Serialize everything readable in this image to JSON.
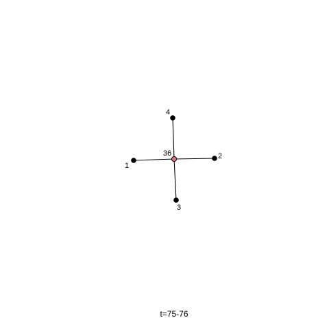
{
  "graph": {
    "caption": "t=75-76",
    "center": {
      "id": "36",
      "color": "#e0707a"
    },
    "leaves": [
      {
        "id": "1",
        "color": "#000000"
      },
      {
        "id": "2",
        "color": "#000000"
      },
      {
        "id": "3",
        "color": "#000000"
      },
      {
        "id": "4",
        "color": "#000000"
      }
    ],
    "edges": [
      [
        "36",
        "1"
      ],
      [
        "36",
        "2"
      ],
      [
        "36",
        "3"
      ],
      [
        "36",
        "4"
      ]
    ]
  }
}
